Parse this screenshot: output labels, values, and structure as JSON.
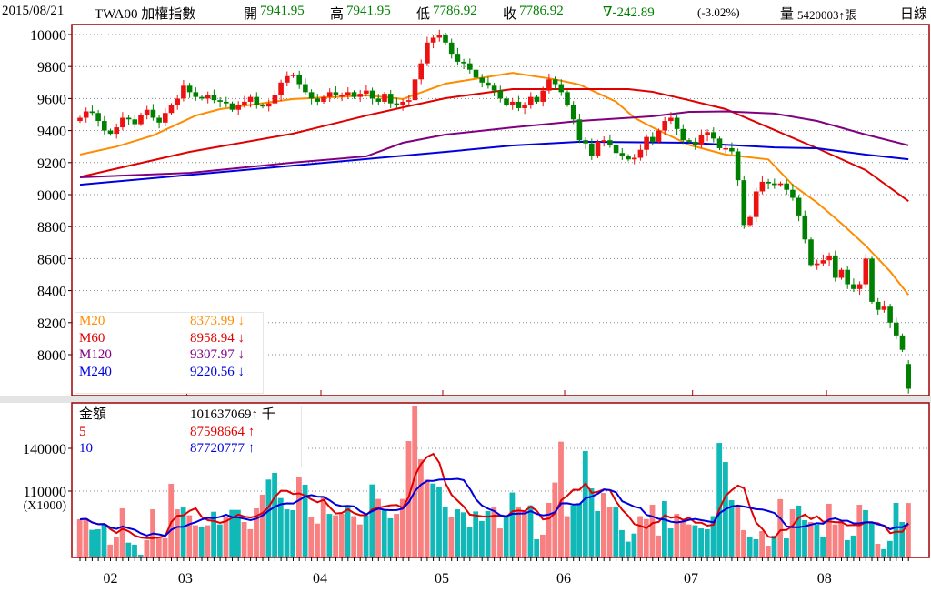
{
  "header": {
    "date": "2015/08/21",
    "symbol": "TWA00 加權指數",
    "open_label": "開",
    "open": "7941.95",
    "high_label": "高",
    "high": "7941.95",
    "low_label": "低",
    "low": "7786.92",
    "close_label": "收",
    "close": "7786.92",
    "change": "∇-242.89",
    "change_pct": "(-3.02%)",
    "volume_label": "量",
    "volume": "5420003↑張",
    "period": "日線"
  },
  "colors": {
    "up": "#ee1111",
    "down": "#008000",
    "m20": "#ff8c00",
    "m60": "#e00000",
    "m120": "#800080",
    "m240": "#0000dd",
    "vol_up": "#f88080",
    "vol_down": "#10b8b8",
    "vma5": "#e00000",
    "vma10": "#0000dd",
    "frame": "#a00000"
  },
  "price_legend": [
    {
      "name": "M20",
      "value": "8373.99 ↓",
      "color": "#ff8c00"
    },
    {
      "name": "M60",
      "value": "8958.94 ↓",
      "color": "#e00000"
    },
    {
      "name": "M120",
      "value": "9307.97 ↓",
      "color": "#800080"
    },
    {
      "name": "M240",
      "value": "9220.56 ↓",
      "color": "#0000dd"
    }
  ],
  "volume_legend": [
    {
      "name": "金額",
      "value": "101637069↑ 千",
      "color": "#000000"
    },
    {
      "name": "5",
      "value": "87598664 ↑",
      "color": "#e00000"
    },
    {
      "name": "10",
      "value": "87720777 ↑",
      "color": "#0000dd"
    }
  ],
  "chart_data": {
    "type": "candlestick",
    "price_axis": {
      "ticks": [
        8000,
        8200,
        8400,
        8600,
        8800,
        9000,
        9200,
        9400,
        9600,
        9800,
        10000
      ],
      "ylim": [
        7690,
        10065
      ],
      "grid": true
    },
    "volume_axis": {
      "ticks": [
        110000,
        140000
      ],
      "unit_label": "(X1000)",
      "ylim": [
        64000,
        172000
      ],
      "grid": true
    },
    "month_labels": [
      {
        "label": "02",
        "index": 5
      },
      {
        "label": "03",
        "index": 17.3
      },
      {
        "label": "04",
        "index": 39.4
      },
      {
        "label": "05",
        "index": 59.4
      },
      {
        "label": "06",
        "index": 79.4
      },
      {
        "label": "07",
        "index": 100.3
      },
      {
        "label": "08",
        "index": 122.2
      }
    ],
    "month_ticks": [
      18,
      40,
      60,
      80,
      101,
      123
    ],
    "close": [
      9480,
      9520,
      9510,
      9460,
      9400,
      9380,
      9420,
      9480,
      9470,
      9440,
      9500,
      9530,
      9480,
      9450,
      9510,
      9560,
      9600,
      9680,
      9640,
      9610,
      9600,
      9620,
      9590,
      9580,
      9570,
      9530,
      9560,
      9580,
      9610,
      9560,
      9550,
      9570,
      9620,
      9700,
      9740,
      9750,
      9690,
      9640,
      9600,
      9580,
      9610,
      9640,
      9620,
      9620,
      9640,
      9610,
      9630,
      9650,
      9600,
      9580,
      9630,
      9570,
      9560,
      9580,
      9590,
      9720,
      9820,
      9950,
      9980,
      10000,
      9950,
      9880,
      9830,
      9820,
      9780,
      9730,
      9700,
      9680,
      9650,
      9600,
      9560,
      9580,
      9540,
      9560,
      9610,
      9580,
      9650,
      9720,
      9690,
      9640,
      9560,
      9470,
      9340,
      9320,
      9240,
      9330,
      9340,
      9310,
      9260,
      9240,
      9220,
      9230,
      9280,
      9360,
      9330,
      9400,
      9460,
      9480,
      9410,
      9340,
      9330,
      9310,
      9370,
      9390,
      9350,
      9290,
      9290,
      9270,
      9090,
      8810,
      8860,
      9020,
      9080,
      9070,
      9060,
      9070,
      9030,
      8980,
      8870,
      8720,
      8560,
      8570,
      8590,
      8620,
      8480,
      8530,
      8440,
      8410,
      8440,
      8600,
      8330,
      8280,
      8300,
      8200,
      8120,
      8030,
      7786.92
    ],
    "ma": [
      {
        "name": "M20",
        "color": "#ff8c00",
        "points": [
          [
            0,
            9250
          ],
          [
            6,
            9300
          ],
          [
            12,
            9370
          ],
          [
            19,
            9494
          ],
          [
            23,
            9534
          ],
          [
            35,
            9597
          ],
          [
            47,
            9620
          ],
          [
            53,
            9597
          ],
          [
            60,
            9693
          ],
          [
            71,
            9761
          ],
          [
            78,
            9720
          ],
          [
            82,
            9687
          ],
          [
            88,
            9580
          ],
          [
            91,
            9480
          ],
          [
            94,
            9420
          ],
          [
            100,
            9310
          ],
          [
            106,
            9250
          ],
          [
            113,
            9220
          ],
          [
            117,
            9060
          ],
          [
            121,
            8950
          ],
          [
            125,
            8820
          ],
          [
            129,
            8680
          ],
          [
            133,
            8520
          ],
          [
            136,
            8374
          ]
        ]
      },
      {
        "name": "M60",
        "color": "#e00000",
        "points": [
          [
            0,
            9110
          ],
          [
            18,
            9267
          ],
          [
            35,
            9381
          ],
          [
            47,
            9494
          ],
          [
            53,
            9545
          ],
          [
            60,
            9602
          ],
          [
            71,
            9659
          ],
          [
            82,
            9659
          ],
          [
            90,
            9659
          ],
          [
            94,
            9642
          ],
          [
            100,
            9590
          ],
          [
            106,
            9534
          ],
          [
            113,
            9420
          ],
          [
            121,
            9290
          ],
          [
            129,
            9153
          ],
          [
            136,
            8959
          ]
        ]
      },
      {
        "name": "M120",
        "color": "#800080",
        "points": [
          [
            0,
            9108
          ],
          [
            18,
            9136
          ],
          [
            35,
            9200
          ],
          [
            47,
            9239
          ],
          [
            53,
            9324
          ],
          [
            60,
            9375
          ],
          [
            71,
            9420
          ],
          [
            82,
            9460
          ],
          [
            94,
            9489
          ],
          [
            100,
            9517
          ],
          [
            106,
            9520
          ],
          [
            114,
            9506
          ],
          [
            121,
            9460
          ],
          [
            129,
            9375
          ],
          [
            136,
            9308
          ]
        ]
      },
      {
        "name": "M240",
        "color": "#0000dd",
        "points": [
          [
            0,
            9062
          ],
          [
            47,
            9222
          ],
          [
            60,
            9267
          ],
          [
            71,
            9307
          ],
          [
            82,
            9330
          ],
          [
            100,
            9324
          ],
          [
            114,
            9295
          ],
          [
            121,
            9290
          ],
          [
            129,
            9250
          ],
          [
            136,
            9221
          ]
        ]
      }
    ],
    "volume": [
      90200,
      90900,
      82800,
      83200,
      87000,
      72400,
      77500,
      97900,
      73800,
      72400,
      65300,
      75600,
      97200,
      77000,
      77000,
      115100,
      97200,
      98500,
      93000,
      86000,
      84500,
      86000,
      95500,
      86600,
      91900,
      96800,
      96800,
      88300,
      83200,
      97900,
      107500,
      118100,
      122800,
      105100,
      97200,
      96600,
      120200,
      114500,
      92100,
      87200,
      105300,
      94000,
      93000,
      94000,
      99400,
      92400,
      86600,
      93000,
      114700,
      104500,
      97200,
      90900,
      94000,
      104500,
      145100,
      170000,
      132300,
      118100,
      115300,
      113200,
      98700,
      91700,
      97200,
      95100,
      84500,
      95700,
      89000,
      96000,
      98500,
      83800,
      91900,
      109000,
      98500,
      96400,
      100000,
      76200,
      79400,
      101700,
      116000,
      144700,
      92400,
      100000,
      101500,
      138100,
      111900,
      96000,
      108700,
      98500,
      98500,
      82600,
      74500,
      80200,
      92400,
      90400,
      100400,
      78800,
      103000,
      83800,
      94000,
      89000,
      86600,
      86000,
      83800,
      83200,
      92400,
      143800,
      130400,
      103600,
      99400,
      82600,
      77500,
      76200,
      81900,
      71700,
      78800,
      104300,
      76800,
      97200,
      99800,
      89600,
      88300,
      86600,
      78100,
      101100,
      86600,
      88700,
      75600,
      78800,
      100400,
      96600,
      88300,
      73000,
      69200,
      75000,
      101700,
      88300,
      101637
    ],
    "volume_dir": "pptttppptttpppppptpptpttpttpppptttttptppptpptppttpttpppppptttpttttttppttppttppppptttttppttttppppttppptttttttppttpptptpttpttpppttpttpttttpt"
  }
}
